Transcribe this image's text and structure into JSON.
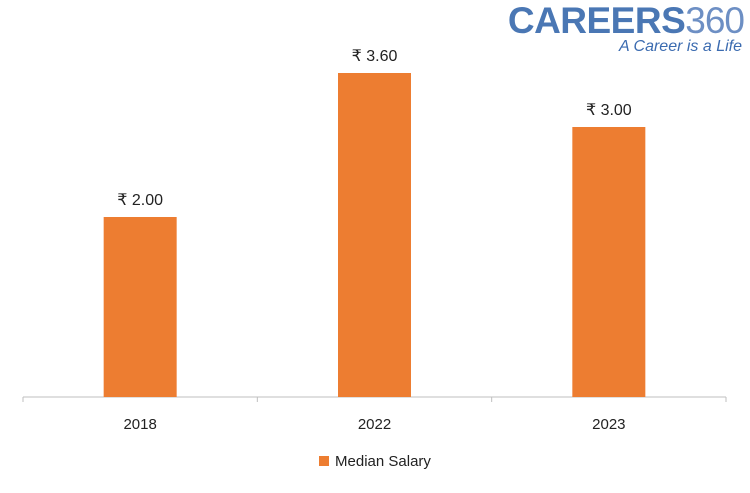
{
  "logo": {
    "main": "CAREERS",
    "number": "360",
    "tagline": "A Career is a Life"
  },
  "chart_data": {
    "type": "bar",
    "categories": [
      "2018",
      "2022",
      "2023"
    ],
    "series": [
      {
        "name": "Median Salary",
        "values": [
          2.0,
          3.6,
          3.0
        ],
        "color": "#ed7d31"
      }
    ],
    "data_labels": [
      "₹ 2.00",
      "₹ 3.60",
      "₹ 3.00"
    ],
    "title": "",
    "xlabel": "",
    "ylabel": "",
    "ylim": [
      0,
      4
    ],
    "grid": false,
    "legend": "bottom-center"
  }
}
